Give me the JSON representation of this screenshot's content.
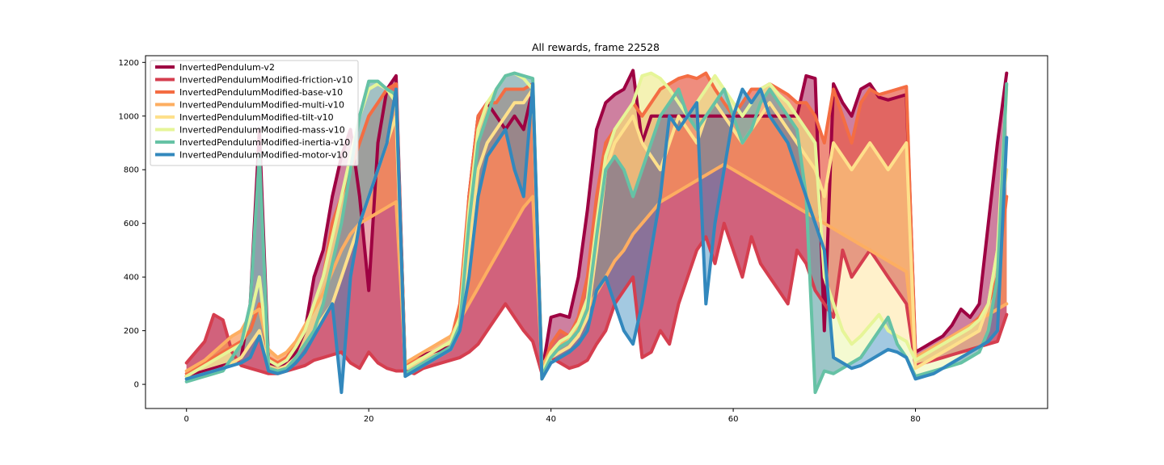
{
  "chart_data": {
    "type": "line",
    "title": "All rewards, frame 22528",
    "xlabel": "",
    "ylabel": "",
    "xlim": [
      -4.5,
      94.5
    ],
    "ylim": [
      -90,
      1225
    ],
    "xticks": [
      0,
      20,
      40,
      60,
      80
    ],
    "yticks": [
      0,
      200,
      400,
      600,
      800,
      1000,
      1200
    ],
    "grid": false,
    "legend_position": "top-left",
    "series": [
      {
        "name": "InvertedPendulum-v2",
        "color": "#9e0142",
        "y": [
          30,
          40,
          50,
          60,
          70,
          80,
          100,
          300,
          950,
          80,
          70,
          80,
          120,
          200,
          400,
          500,
          700,
          850,
          950,
          700,
          350,
          900,
          1100,
          1150,
          60,
          90,
          110,
          120,
          130,
          140,
          200,
          700,
          1000,
          1050,
          1000,
          950,
          1000,
          950,
          1100,
          40,
          250,
          260,
          250,
          400,
          650,
          950,
          1050,
          1080,
          1100,
          1170,
          900,
          1000,
          1000,
          1000,
          1000,
          1000,
          1000,
          1000,
          1000,
          1000,
          1000,
          1000,
          1000,
          1000,
          1000,
          1000,
          1000,
          1000,
          1150,
          1140,
          200,
          1120,
          1050,
          1000,
          1100,
          1120,
          1070,
          1060,
          1070,
          1080,
          120,
          140,
          160,
          180,
          220,
          280,
          250,
          300,
          600,
          900,
          1160
        ]
      },
      {
        "name": "InvertedPendulumModified-friction-v10",
        "color": "#d53e4f",
        "y": [
          80,
          120,
          160,
          260,
          240,
          120,
          70,
          60,
          50,
          40,
          40,
          50,
          60,
          70,
          90,
          100,
          110,
          120,
          80,
          60,
          120,
          80,
          60,
          50,
          50,
          40,
          60,
          70,
          80,
          90,
          100,
          120,
          150,
          200,
          250,
          300,
          250,
          200,
          160,
          40,
          100,
          80,
          60,
          70,
          90,
          150,
          200,
          300,
          350,
          400,
          100,
          120,
          200,
          150,
          300,
          400,
          500,
          550,
          450,
          600,
          500,
          400,
          550,
          450,
          400,
          350,
          300,
          500,
          450,
          350,
          300,
          250,
          500,
          400,
          450,
          500,
          450,
          400,
          350,
          300,
          70,
          80,
          90,
          100,
          110,
          120,
          130,
          140,
          150,
          160,
          260
        ]
      },
      {
        "name": "InvertedPendulumModified-base-v10",
        "color": "#f46d43",
        "y": [
          40,
          60,
          80,
          100,
          120,
          140,
          160,
          200,
          300,
          100,
          80,
          100,
          150,
          200,
          300,
          400,
          600,
          700,
          800,
          900,
          1000,
          1050,
          1100,
          1120,
          70,
          90,
          100,
          120,
          140,
          160,
          300,
          700,
          1000,
          1050,
          1050,
          1100,
          1100,
          1100,
          1120,
          50,
          150,
          200,
          180,
          250,
          400,
          700,
          900,
          950,
          1000,
          1050,
          1000,
          1050,
          1100,
          1120,
          1140,
          1150,
          1140,
          1160,
          1100,
          1050,
          1000,
          1050,
          1100,
          1100,
          1120,
          1100,
          1080,
          1050,
          1050,
          1000,
          900,
          1100,
          1000,
          900,
          1050,
          1100,
          1080,
          1090,
          1100,
          1110,
          100,
          120,
          140,
          160,
          180,
          200,
          220,
          250,
          300,
          400,
          700
        ]
      },
      {
        "name": "InvertedPendulumModified-multi-v10",
        "color": "#fdae61",
        "y": [
          50,
          70,
          90,
          120,
          150,
          180,
          200,
          260,
          280,
          130,
          100,
          120,
          160,
          220,
          280,
          340,
          420,
          500,
          560,
          600,
          620,
          640,
          660,
          680,
          80,
          100,
          120,
          140,
          160,
          180,
          240,
          300,
          360,
          420,
          480,
          540,
          600,
          660,
          700,
          70,
          120,
          150,
          180,
          220,
          280,
          340,
          400,
          460,
          500,
          560,
          600,
          640,
          680,
          700,
          720,
          740,
          760,
          780,
          800,
          820,
          800,
          780,
          760,
          740,
          720,
          700,
          680,
          660,
          640,
          620,
          600,
          580,
          560,
          540,
          520,
          500,
          480,
          460,
          440,
          420,
          100,
          120,
          140,
          160,
          180,
          200,
          220,
          240,
          260,
          280,
          300
        ]
      },
      {
        "name": "InvertedPendulumModified-tilt-v10",
        "color": "#fee08b",
        "y": [
          20,
          30,
          40,
          50,
          60,
          80,
          100,
          150,
          200,
          60,
          50,
          70,
          100,
          150,
          200,
          250,
          300,
          400,
          500,
          600,
          700,
          800,
          900,
          1000,
          30,
          50,
          70,
          90,
          110,
          130,
          200,
          500,
          800,
          900,
          950,
          1000,
          1050,
          1050,
          1100,
          20,
          100,
          120,
          140,
          180,
          250,
          500,
          800,
          900,
          950,
          1000,
          900,
          850,
          800,
          900,
          1000,
          950,
          900,
          1000,
          1050,
          1000,
          950,
          900,
          950,
          1000,
          1050,
          1000,
          950,
          900,
          850,
          800,
          700,
          900,
          850,
          800,
          850,
          900,
          850,
          800,
          850,
          900,
          60,
          80,
          100,
          120,
          140,
          160,
          180,
          200,
          300,
          500,
          800
        ]
      },
      {
        "name": "InvertedPendulumModified-mass-v10",
        "color": "#e6f598",
        "y": [
          30,
          50,
          70,
          90,
          110,
          130,
          150,
          250,
          400,
          90,
          70,
          90,
          140,
          200,
          300,
          400,
          550,
          700,
          850,
          1000,
          1100,
          1120,
          1100,
          1050,
          60,
          80,
          100,
          120,
          140,
          160,
          250,
          650,
          950,
          1050,
          1100,
          1150,
          1160,
          1140,
          1100,
          40,
          120,
          160,
          180,
          230,
          320,
          600,
          850,
          950,
          1000,
          1050,
          1150,
          1160,
          1140,
          1100,
          1050,
          1000,
          1050,
          1100,
          1150,
          1100,
          1050,
          1000,
          1050,
          1100,
          1120,
          1080,
          1050,
          1000,
          950,
          900,
          400,
          300,
          200,
          150,
          180,
          220,
          260,
          200,
          180,
          160,
          90,
          110,
          130,
          150,
          170,
          190,
          210,
          240,
          300,
          500,
          1100
        ]
      },
      {
        "name": "InvertedPendulumModified-inertia-v10",
        "color": "#66c2a5",
        "y": [
          10,
          20,
          30,
          40,
          50,
          100,
          150,
          300,
          860,
          60,
          50,
          60,
          100,
          150,
          200,
          300,
          450,
          600,
          800,
          1000,
          1130,
          1130,
          1100,
          1080,
          40,
          60,
          80,
          100,
          120,
          140,
          220,
          600,
          900,
          1000,
          1100,
          1150,
          1160,
          1150,
          1140,
          30,
          100,
          140,
          160,
          200,
          280,
          550,
          800,
          850,
          800,
          700,
          800,
          900,
          1000,
          1050,
          1100,
          1000,
          950,
          1000,
          1050,
          1100,
          1000,
          900,
          950,
          1050,
          1100,
          1050,
          1000,
          950,
          700,
          -30,
          50,
          40,
          60,
          80,
          100,
          150,
          200,
          250,
          150,
          100,
          30,
          40,
          50,
          60,
          70,
          80,
          100,
          120,
          200,
          400,
          1120
        ]
      },
      {
        "name": "InvertedPendulumModified-motor-v10",
        "color": "#3288bd",
        "y": [
          20,
          30,
          40,
          50,
          60,
          70,
          80,
          100,
          180,
          50,
          40,
          50,
          80,
          120,
          180,
          240,
          300,
          -30,
          400,
          600,
          700,
          800,
          900,
          1100,
          30,
          50,
          70,
          90,
          110,
          130,
          200,
          400,
          700,
          850,
          900,
          950,
          800,
          700,
          1120,
          20,
          80,
          100,
          120,
          150,
          200,
          350,
          400,
          300,
          200,
          150,
          300,
          500,
          700,
          1000,
          950,
          1000,
          1050,
          300,
          600,
          800,
          1000,
          1100,
          1050,
          1100,
          1000,
          950,
          900,
          800,
          700,
          600,
          500,
          100,
          80,
          60,
          70,
          90,
          110,
          130,
          120,
          100,
          20,
          30,
          40,
          60,
          80,
          100,
          120,
          140,
          160,
          200,
          920
        ]
      }
    ],
    "fill_bands": [
      {
        "series": [
          "InvertedPendulum-v2",
          "InvertedPendulumModified-friction-v10"
        ],
        "color": "#9e0142",
        "opacity": 0.5
      },
      {
        "series": [
          "InvertedPendulumModified-friction-v10",
          "InvertedPendulumModified-base-v10"
        ],
        "color": "#d53e4f",
        "opacity": 0.45
      },
      {
        "series": [
          "InvertedPendulumModified-base-v10",
          "InvertedPendulumModified-multi-v10"
        ],
        "color": "#f46d43",
        "opacity": 0.45
      },
      {
        "series": [
          "InvertedPendulumModified-multi-v10",
          "InvertedPendulumModified-tilt-v10"
        ],
        "color": "#fdae61",
        "opacity": 0.45
      },
      {
        "series": [
          "InvertedPendulumModified-tilt-v10",
          "InvertedPendulumModified-mass-v10"
        ],
        "color": "#fee08b",
        "opacity": 0.45
      },
      {
        "series": [
          "InvertedPendulumModified-mass-v10",
          "InvertedPendulumModified-inertia-v10"
        ],
        "color": "#e6f598",
        "opacity": 0.45
      },
      {
        "series": [
          "InvertedPendulumModified-inertia-v10",
          "InvertedPendulumModified-motor-v10"
        ],
        "color": "#3288bd",
        "opacity": 0.45
      }
    ]
  }
}
